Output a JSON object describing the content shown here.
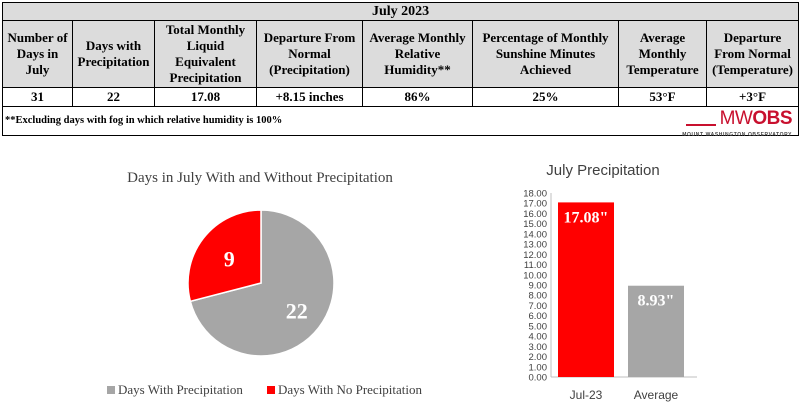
{
  "table": {
    "title": "July 2023",
    "headers": [
      "Number of Days in July",
      "Days with Precipitation",
      "Total Monthly Liquid Equivalent Precipitation",
      "Departure From Normal (Precipitation)",
      "Average Monthly Relative Humidity**",
      "Percentage of Monthly Sunshine Minutes Achieved",
      "Average Monthly Temperature",
      "Departure From Normal (Temperature)"
    ],
    "values": [
      "31",
      "22",
      "17.08",
      "+8.15 inches",
      "86%",
      "25%",
      "53°F",
      "+3°F"
    ],
    "footnote": "**Excluding days with fog in which relative humidity is 100%"
  },
  "logo": {
    "mw_thin": "MW",
    "mw_bold": "OBS",
    "subtitle": "MOUNT WASHINGTON OBSERVATORY"
  },
  "chart_data": [
    {
      "type": "pie",
      "title": "Days in July With and Without Precipitation",
      "slices": [
        {
          "label": "Days With Precipitation",
          "value": 22,
          "color": "#a6a6a6"
        },
        {
          "label": "Days With No Precipitation",
          "value": 9,
          "color": "#ff0000"
        }
      ],
      "legend_position": "bottom"
    },
    {
      "type": "bar",
      "title": "July Precipitation",
      "categories": [
        "Jul-23",
        "Average"
      ],
      "values": [
        17.08,
        8.93
      ],
      "data_labels": [
        "17.08\"",
        "8.93\""
      ],
      "colors": [
        "#ff0000",
        "#a6a6a6"
      ],
      "ylim": [
        0,
        18
      ],
      "ytick_step": 1,
      "grid": false
    }
  ]
}
